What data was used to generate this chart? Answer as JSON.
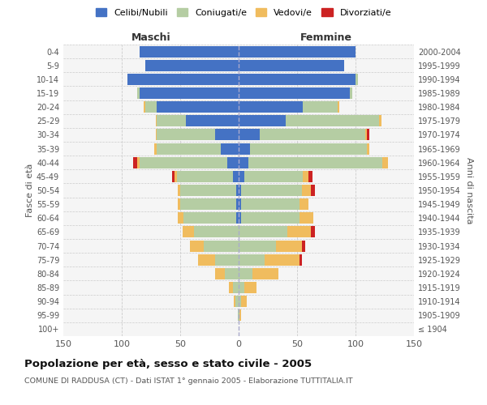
{
  "age_groups": [
    "100+",
    "95-99",
    "90-94",
    "85-89",
    "80-84",
    "75-79",
    "70-74",
    "65-69",
    "60-64",
    "55-59",
    "50-54",
    "45-49",
    "40-44",
    "35-39",
    "30-34",
    "25-29",
    "20-24",
    "15-19",
    "10-14",
    "5-9",
    "0-4"
  ],
  "birth_years": [
    "≤ 1904",
    "1905-1909",
    "1910-1914",
    "1915-1919",
    "1920-1924",
    "1925-1929",
    "1930-1934",
    "1935-1939",
    "1940-1944",
    "1945-1949",
    "1950-1954",
    "1955-1959",
    "1960-1964",
    "1965-1969",
    "1970-1974",
    "1975-1979",
    "1980-1984",
    "1985-1989",
    "1990-1994",
    "1995-1999",
    "2000-2004"
  ],
  "maschi_celibi": [
    0,
    0,
    0,
    0,
    0,
    0,
    0,
    0,
    2,
    2,
    2,
    5,
    10,
    15,
    20,
    45,
    70,
    85,
    95,
    80,
    85
  ],
  "maschi_coniugati": [
    0,
    1,
    3,
    5,
    12,
    20,
    30,
    38,
    45,
    48,
    48,
    48,
    75,
    55,
    50,
    25,
    10,
    2,
    0,
    0,
    0
  ],
  "maschi_vedovi": [
    0,
    0,
    1,
    3,
    8,
    15,
    12,
    10,
    5,
    2,
    2,
    2,
    2,
    2,
    1,
    1,
    1,
    0,
    0,
    0,
    0
  ],
  "maschi_div": [
    0,
    0,
    0,
    0,
    0,
    0,
    0,
    0,
    0,
    0,
    0,
    2,
    3,
    0,
    0,
    0,
    0,
    0,
    0,
    0,
    0
  ],
  "femmine_nubili": [
    0,
    0,
    0,
    0,
    0,
    0,
    0,
    0,
    2,
    2,
    2,
    5,
    8,
    10,
    18,
    40,
    55,
    95,
    100,
    90,
    100
  ],
  "femmine_coniugate": [
    0,
    1,
    2,
    5,
    12,
    22,
    32,
    42,
    50,
    50,
    52,
    50,
    115,
    100,
    90,
    80,
    30,
    2,
    2,
    0,
    0
  ],
  "femmine_vedove": [
    0,
    1,
    5,
    10,
    22,
    30,
    22,
    20,
    12,
    8,
    8,
    5,
    5,
    2,
    2,
    2,
    1,
    0,
    0,
    0,
    0
  ],
  "femmine_div": [
    0,
    0,
    0,
    0,
    0,
    2,
    3,
    3,
    0,
    0,
    3,
    3,
    0,
    0,
    2,
    0,
    0,
    0,
    0,
    0,
    0
  ],
  "colors": {
    "celibi_nubili": "#4472c4",
    "coniugati_e": "#b5cda3",
    "vedovi_e": "#f0bc5e",
    "divorziati_e": "#cc2222"
  },
  "xlim": 150,
  "title": "Popolazione per età, sesso e stato civile - 2005",
  "subtitle": "COMUNE DI RADDUSA (CT) - Dati ISTAT 1° gennaio 2005 - Elaborazione TUTTITALIA.IT",
  "xlabel_left": "Maschi",
  "xlabel_right": "Femmine",
  "ylabel_left": "Fasce di età",
  "ylabel_right": "Anni di nascita",
  "legend_labels": [
    "Celibi/Nubili",
    "Coniugati/e",
    "Vedovi/e",
    "Divorziati/e"
  ]
}
